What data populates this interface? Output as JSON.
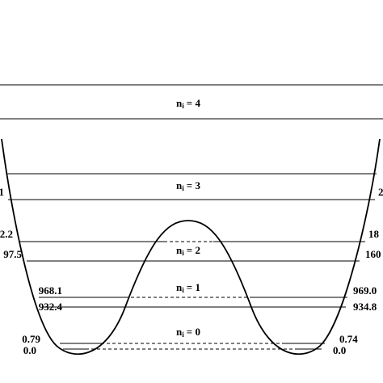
{
  "symbol": "n",
  "subscript": "i",
  "levels": [
    {
      "state": "= 4"
    },
    {
      "state": "= 3",
      "left": "1",
      "right": "2"
    },
    {
      "state": "= 2",
      "left_upper": "2.2",
      "right_upper": "18",
      "left": "97.5",
      "right": "160"
    },
    {
      "state": "= 1",
      "left_upper": "968.1",
      "right_upper": "969.0",
      "left": "932.4",
      "right": "934.8"
    },
    {
      "state": "= 0",
      "left_upper": "0.79",
      "right_upper": "0.74",
      "left": "0.0",
      "right": "0.0"
    }
  ]
}
